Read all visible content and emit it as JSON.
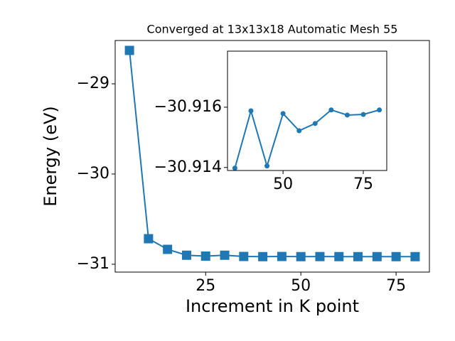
{
  "chart_data": [
    {
      "type": "line",
      "title": "Converged at 13x13x18 Automatic Mesh 55",
      "xlabel": "Increment in K point",
      "ylabel": "Energy (eV)",
      "x": [
        5,
        10,
        15,
        20,
        25,
        30,
        35,
        40,
        45,
        50,
        55,
        60,
        65,
        70,
        75,
        80
      ],
      "values": [
        -28.63,
        -30.717,
        -30.835,
        -30.9,
        -30.91,
        -30.9,
        -30.91398,
        -30.91588,
        -30.91405,
        -30.91579,
        -30.91522,
        -30.91546,
        -30.91591,
        -30.91574,
        -30.91576,
        -30.91591
      ],
      "color": "#1f77b4",
      "marker": "square",
      "xlim": [
        1.25,
        83.75
      ],
      "xticks": [
        25,
        50,
        75
      ],
      "ylim": [
        -31.087,
        -28.52
      ],
      "yticks": [
        {
          "value": -29,
          "label": "−29"
        },
        {
          "value": -30,
          "label": "−30"
        },
        {
          "value": -31,
          "label": "−31"
        }
      ]
    },
    {
      "type": "line",
      "x": [
        35,
        40,
        45,
        50,
        55,
        60,
        65,
        70,
        75,
        80
      ],
      "values": [
        -30.91398,
        -30.91588,
        -30.91405,
        -30.91579,
        -30.91522,
        -30.91546,
        -30.91591,
        -30.91574,
        -30.91576,
        -30.91591
      ],
      "color": "#1f77b4",
      "marker": "circle",
      "xlim": [
        32.7,
        82.3
      ],
      "xticks": [
        50,
        75
      ],
      "ylim": [
        -30.9139,
        -30.91786
      ],
      "yticks": [
        {
          "value": -30.916,
          "label": "−30.916"
        },
        {
          "value": -30.914,
          "label": "−30.914"
        }
      ]
    }
  ]
}
